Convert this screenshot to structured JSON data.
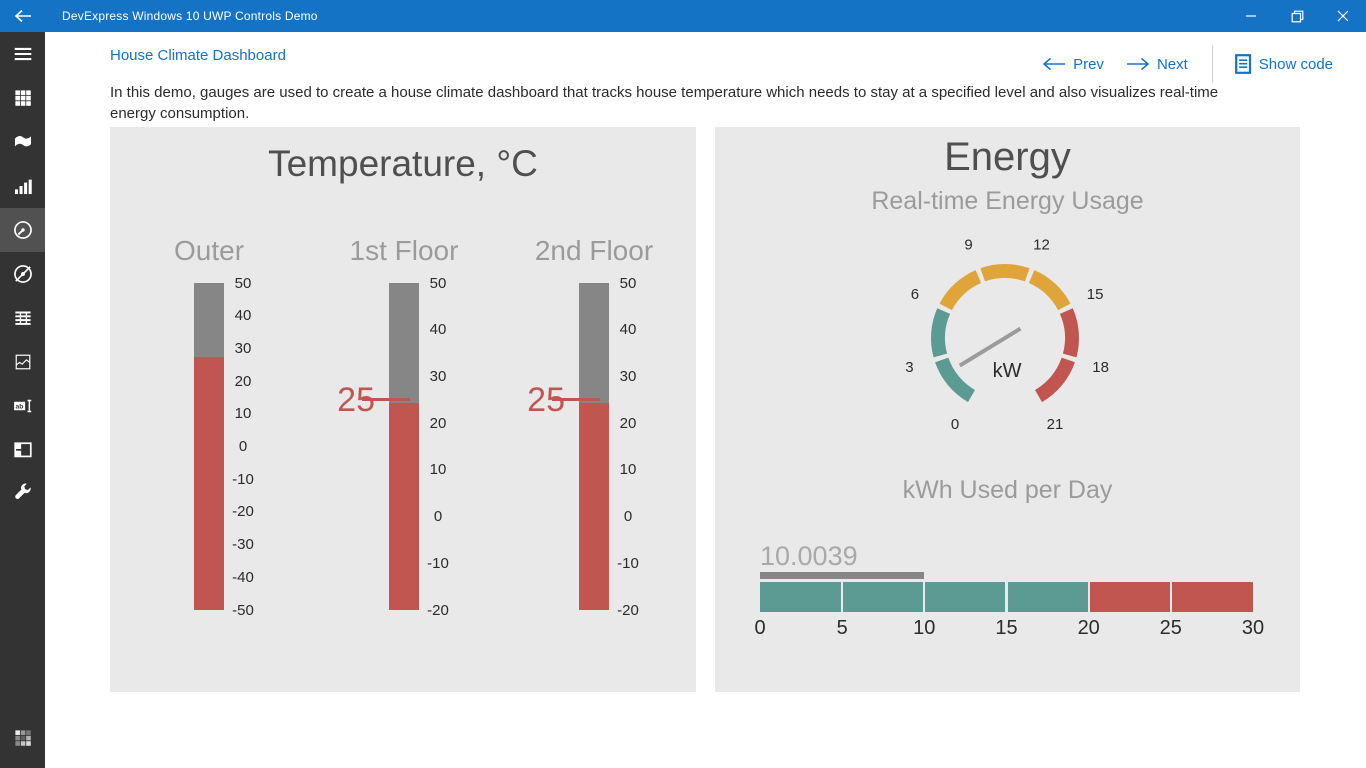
{
  "titlebar": {
    "title": "DevExpress Windows 10 UWP Controls Demo"
  },
  "header": {
    "breadcrumb": "House Climate Dashboard",
    "prev_label": "Prev",
    "next_label": "Next",
    "show_code_label": "Show code"
  },
  "description_lines": [
    "In this demo, gauges are used to create a house climate dashboard that tracks house temperature which needs to stay at a specified level and also visualizes real-time",
    "energy consumption."
  ],
  "sidebar": {
    "items": [
      {
        "icon": "menu",
        "selected": false
      },
      {
        "icon": "tiles",
        "selected": false
      },
      {
        "icon": "flag",
        "selected": false
      },
      {
        "icon": "bar-chart",
        "selected": false
      },
      {
        "icon": "gauge",
        "selected": true
      },
      {
        "icon": "compass",
        "selected": false
      },
      {
        "icon": "table",
        "selected": false
      },
      {
        "icon": "range-chart",
        "selected": false
      },
      {
        "icon": "editors",
        "selected": false
      },
      {
        "icon": "layout",
        "selected": false
      },
      {
        "icon": "wrench",
        "selected": false
      }
    ],
    "bottom_icon": "apps"
  },
  "colors": {
    "titlebar": "#1573c6",
    "accent": "#1373c5",
    "sidebar_bg": "#333333",
    "sidebar_selected": "#515151",
    "panel_bg": "#e9e9e9",
    "teal": "#5b9b94",
    "red": "#c0564f",
    "yellow": "#dfa53a",
    "gauge_empty_gray": "#868686",
    "needle_gray": "#9b9b9b",
    "heading_gray": "#4f4f4f",
    "muted_gray": "#9b9b9b",
    "tick_text": "#2b2b2b"
  },
  "chart_data": [
    {
      "type": "linear-gauge-group",
      "title": "Temperature, °C",
      "fill_color": "#c0564f",
      "empty_color": "#868686",
      "marker_color": "#c0564f",
      "gauges": [
        {
          "label": "Outer",
          "min": -50,
          "max": 50,
          "tick_step": 10,
          "ticks": [
            50,
            40,
            30,
            20,
            10,
            0,
            -10,
            -20,
            -30,
            -40,
            -50
          ],
          "value": 27.5,
          "marker": null
        },
        {
          "label": "1st Floor",
          "min": -20,
          "max": 50,
          "tick_step": 10,
          "ticks": [
            50,
            40,
            30,
            20,
            10,
            0,
            -10,
            -20
          ],
          "value": 24.3,
          "marker": 25
        },
        {
          "label": "2nd Floor",
          "min": -20,
          "max": 50,
          "tick_step": 10,
          "ticks": [
            50,
            40,
            30,
            20,
            10,
            0,
            -10,
            -20
          ],
          "value": 24.3,
          "marker": 25
        }
      ]
    },
    {
      "type": "radial-gauge",
      "title": "Energy",
      "subtitle": "Real-time Energy Usage",
      "unit_label": "kW",
      "min": 0,
      "max": 21,
      "tick_step": 3,
      "ticks": [
        0,
        3,
        6,
        9,
        12,
        15,
        18,
        21
      ],
      "start_angle_deg": 240,
      "sweep_deg": 300,
      "segments": [
        {
          "from": 0,
          "to": 6,
          "color": "#5b9b94"
        },
        {
          "from": 6,
          "to": 15,
          "color": "#dfa53a"
        },
        {
          "from": 15,
          "to": 21,
          "color": "#c0564f"
        }
      ],
      "needle_value": 14.6,
      "needle_color": "#9b9b9b"
    },
    {
      "type": "bullet-gauge",
      "title": "kWh Used per Day",
      "min": 0,
      "max": 30,
      "tick_step": 5,
      "segment_step": 5,
      "ticks": [
        0,
        5,
        10,
        15,
        20,
        25,
        30
      ],
      "value": 10.0039,
      "value_label": "10.0039",
      "value_bar_color": "#878787",
      "segments": [
        {
          "from": 0,
          "to": 20,
          "color": "#5b9b94"
        },
        {
          "from": 20,
          "to": 30,
          "color": "#c0564f"
        }
      ]
    }
  ]
}
